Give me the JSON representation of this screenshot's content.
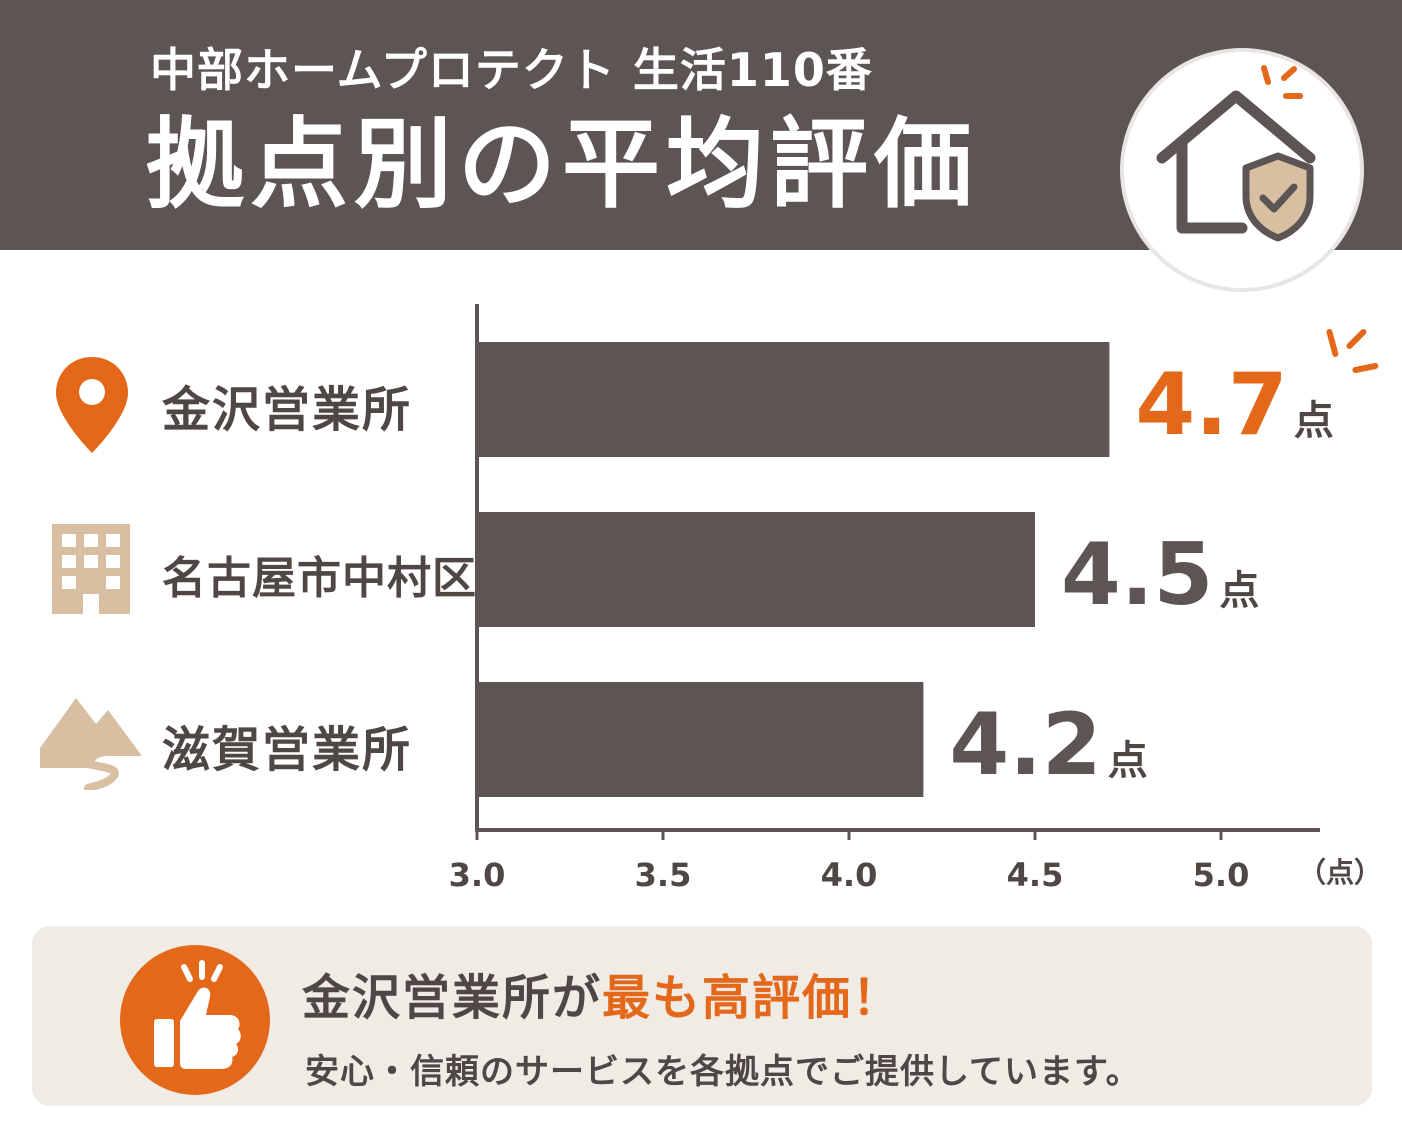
{
  "header": {
    "subtitle": "中部ホームプロテクト 生活110番",
    "title": "拠点別の平均評価"
  },
  "icons": {
    "header_badge": "house-shield-check-icon",
    "row_icons": [
      "map-pin-icon",
      "building-icon",
      "mountain-river-icon"
    ],
    "footer": "thumbs-up-icon"
  },
  "colors": {
    "bar": "#5d5553",
    "accent": "#e3681a",
    "text": "#4f4744",
    "tan": "#d8bfa2"
  },
  "chart_data": {
    "type": "bar",
    "orientation": "horizontal",
    "categories": [
      "金沢営業所",
      "名古屋市中村区",
      "滋賀営業所"
    ],
    "values": [
      4.7,
      4.5,
      4.2
    ],
    "value_labels": [
      "4.7",
      "4.5",
      "4.2"
    ],
    "value_unit": "点",
    "highlight_index": 0,
    "xlim": [
      3.0,
      5.0
    ],
    "xticks": [
      "3.0",
      "3.5",
      "4.0",
      "4.5",
      "5.0"
    ],
    "xunit": "（点）",
    "grid": false
  },
  "footer": {
    "headline_part1": "金沢営業所が",
    "headline_part2": "最も高評価！",
    "subtext": "安心・信頼のサービスを各拠点でご提供しています。"
  }
}
